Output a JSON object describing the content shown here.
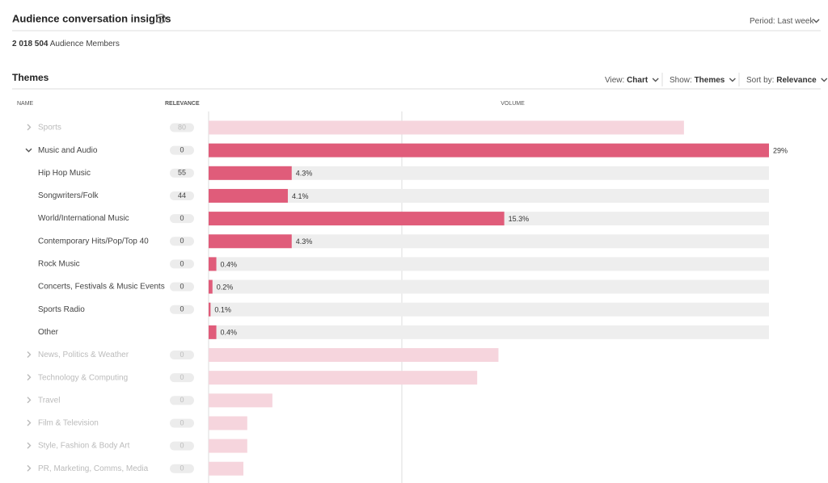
{
  "header": {
    "title": "Audience conversation insights",
    "help_icon": "?",
    "period_label": "Period:",
    "period_value": "Last week"
  },
  "audience": {
    "count": "2 018 504",
    "label": "Audience Members"
  },
  "section": {
    "title": "Themes"
  },
  "controls": [
    {
      "label": "View:",
      "value": "Chart"
    },
    {
      "label": "Show:",
      "value": "Themes"
    },
    {
      "label": "Sort by:",
      "value": "Relevance"
    }
  ],
  "columns": {
    "name": "NAME",
    "relevance": "RELEVANCE",
    "volume": "VOLUME"
  },
  "volume_scale": [
    0,
    29
  ],
  "volume_grid": [
    10
  ],
  "bar_color": "#e05c7a",
  "muted_bar_color": "#f6d5dd",
  "rows": [
    {
      "name": "Sports",
      "relevance": 80,
      "volume": 24.6,
      "expanded": false
    },
    {
      "name": "Music and Audio",
      "relevance": 0,
      "volume": 29,
      "volume_label": "29%",
      "expanded": true
    },
    {
      "name": "Hip Hop Music",
      "relevance": 55,
      "volume": 4.3,
      "volume_label": "4.3%"
    },
    {
      "name": "Songwriters/Folk",
      "relevance": 44,
      "volume": 4.1,
      "volume_label": "4.1%"
    },
    {
      "name": "World/International Music",
      "relevance": 0,
      "volume": 15.3,
      "volume_label": "15.3%"
    },
    {
      "name": "Contemporary Hits/Pop/Top 40",
      "relevance": 0,
      "volume": 4.3,
      "volume_label": "4.3%"
    },
    {
      "name": "Rock Music",
      "relevance": 0,
      "volume": 0.4,
      "volume_label": "0.4%"
    },
    {
      "name": "Concerts, Festivals & Music Events",
      "relevance": 0,
      "volume": 0.2,
      "volume_label": "0.2%"
    },
    {
      "name": "Sports Radio",
      "relevance": 0,
      "volume": 0.1,
      "volume_label": "0.1%"
    },
    {
      "name": "Other",
      "volume": 0.4,
      "volume_label": "0.4%"
    },
    {
      "name": "News, Politics & Weather",
      "relevance": 0,
      "volume": 15.0,
      "expanded": false
    },
    {
      "name": "Technology & Computing",
      "relevance": 0,
      "volume": 13.9,
      "expanded": false
    },
    {
      "name": "Travel",
      "relevance": 0,
      "volume": 3.3,
      "expanded": false
    },
    {
      "name": "Film & Television",
      "relevance": 0,
      "volume": 2.0,
      "expanded": false
    },
    {
      "name": "Style, Fashion & Body Art",
      "relevance": 0,
      "volume": 2.0,
      "expanded": false
    },
    {
      "name": "PR, Marketing, Comms, Media",
      "relevance": 0,
      "volume": 1.8,
      "expanded": false
    }
  ]
}
